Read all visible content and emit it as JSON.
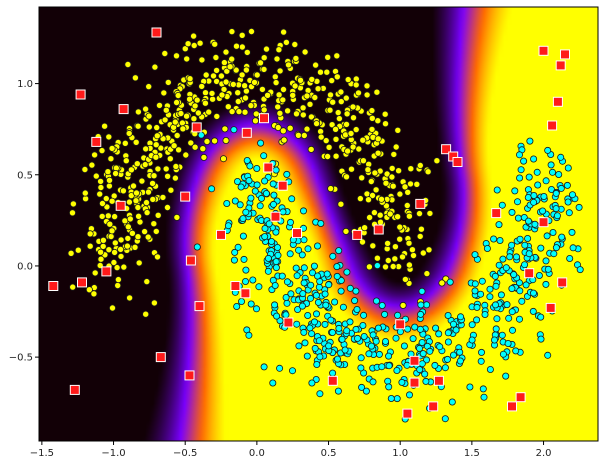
{
  "chart_data": {
    "type": "scatter",
    "title": "",
    "xlabel": "",
    "ylabel": "",
    "xlim": [
      -1.52,
      2.38
    ],
    "ylim": [
      -0.96,
      1.42
    ],
    "grid": false,
    "legend": "none",
    "background": "decision-boundary heatmap (black → purple → orange → yellow)",
    "x_ticks": [
      {
        "value": -1.5,
        "label": "−1.5"
      },
      {
        "value": -1.0,
        "label": "−1.0"
      },
      {
        "value": -0.5,
        "label": "−0.5"
      },
      {
        "value": 0.0,
        "label": "0.0"
      },
      {
        "value": 0.5,
        "label": "0.5"
      },
      {
        "value": 1.0,
        "label": "1.0"
      },
      {
        "value": 1.5,
        "label": "1.5"
      },
      {
        "value": 2.0,
        "label": "2.0"
      }
    ],
    "y_ticks": [
      {
        "value": -0.5,
        "label": "−0.5"
      },
      {
        "value": 0.0,
        "label": "0.0"
      },
      {
        "value": 0.5,
        "label": "0.5"
      },
      {
        "value": 1.0,
        "label": "1.0"
      }
    ],
    "colors": {
      "class_0": "#ffff00",
      "class_1": "#00ffff",
      "outliers": "#ff1a1a",
      "heat_low": "#120006",
      "heat_mid": "#7a00ff",
      "heat_mid2": "#ff6a00",
      "heat_high": "#ffff00"
    },
    "series": [
      {
        "marker": "circle",
        "color": "#ffff00",
        "generator": "upper moon, ~650 points, noise ~0.15",
        "shape": "cos/sin arc, t from 0 to π, center (0,0), radius 1"
      },
      {
        "marker": "circle",
        "color": "#00ffff",
        "generator": "lower moon, ~650 points, noise ~0.15",
        "shape": "1−cos t, 0.5−sin t, t from 0 to π"
      },
      {
        "marker": "square",
        "color": "#ff1a1a",
        "points": [
          {
            "x": -0.7,
            "y": 1.28
          },
          {
            "x": -1.23,
            "y": 0.94
          },
          {
            "x": -0.93,
            "y": 0.86
          },
          {
            "x": -1.12,
            "y": 0.68
          },
          {
            "x": -0.42,
            "y": 0.76
          },
          {
            "x": -0.07,
            "y": 0.73
          },
          {
            "x": 0.05,
            "y": 0.81
          },
          {
            "x": 0.08,
            "y": 0.54
          },
          {
            "x": 0.18,
            "y": 0.44
          },
          {
            "x": -0.95,
            "y": 0.33
          },
          {
            "x": -0.5,
            "y": 0.38
          },
          {
            "x": 0.13,
            "y": 0.27
          },
          {
            "x": 0.28,
            "y": 0.18
          },
          {
            "x": -0.25,
            "y": 0.17
          },
          {
            "x": -1.05,
            "y": -0.03
          },
          {
            "x": -0.46,
            "y": 0.03
          },
          {
            "x": -1.42,
            "y": -0.11
          },
          {
            "x": -1.22,
            "y": -0.09
          },
          {
            "x": -0.15,
            "y": -0.11
          },
          {
            "x": -0.08,
            "y": -0.15
          },
          {
            "x": -0.4,
            "y": -0.22
          },
          {
            "x": 0.22,
            "y": -0.31
          },
          {
            "x": -0.67,
            "y": -0.5
          },
          {
            "x": -0.47,
            "y": -0.6
          },
          {
            "x": -1.27,
            "y": -0.68
          },
          {
            "x": 0.53,
            "y": -0.63
          },
          {
            "x": 0.7,
            "y": 0.17
          },
          {
            "x": 0.85,
            "y": 0.2
          },
          {
            "x": 1.14,
            "y": 0.34
          },
          {
            "x": 1.0,
            "y": -0.32
          },
          {
            "x": 1.1,
            "y": -0.52
          },
          {
            "x": 1.1,
            "y": -0.64
          },
          {
            "x": 1.27,
            "y": -0.63
          },
          {
            "x": 1.05,
            "y": -0.81
          },
          {
            "x": 1.23,
            "y": -0.77
          },
          {
            "x": 1.32,
            "y": 0.64
          },
          {
            "x": 1.37,
            "y": 0.6
          },
          {
            "x": 1.4,
            "y": 0.57
          },
          {
            "x": 1.67,
            "y": 0.29
          },
          {
            "x": 1.78,
            "y": -0.77
          },
          {
            "x": 1.84,
            "y": -0.72
          },
          {
            "x": 1.9,
            "y": -0.04
          },
          {
            "x": 2.0,
            "y": 0.24
          },
          {
            "x": 2.0,
            "y": 1.18
          },
          {
            "x": 2.15,
            "y": 1.16
          },
          {
            "x": 2.12,
            "y": 1.1
          },
          {
            "x": 2.1,
            "y": 0.9
          },
          {
            "x": 2.06,
            "y": 0.77
          },
          {
            "x": 2.13,
            "y": -0.09
          },
          {
            "x": 2.05,
            "y": -0.23
          }
        ]
      }
    ]
  }
}
